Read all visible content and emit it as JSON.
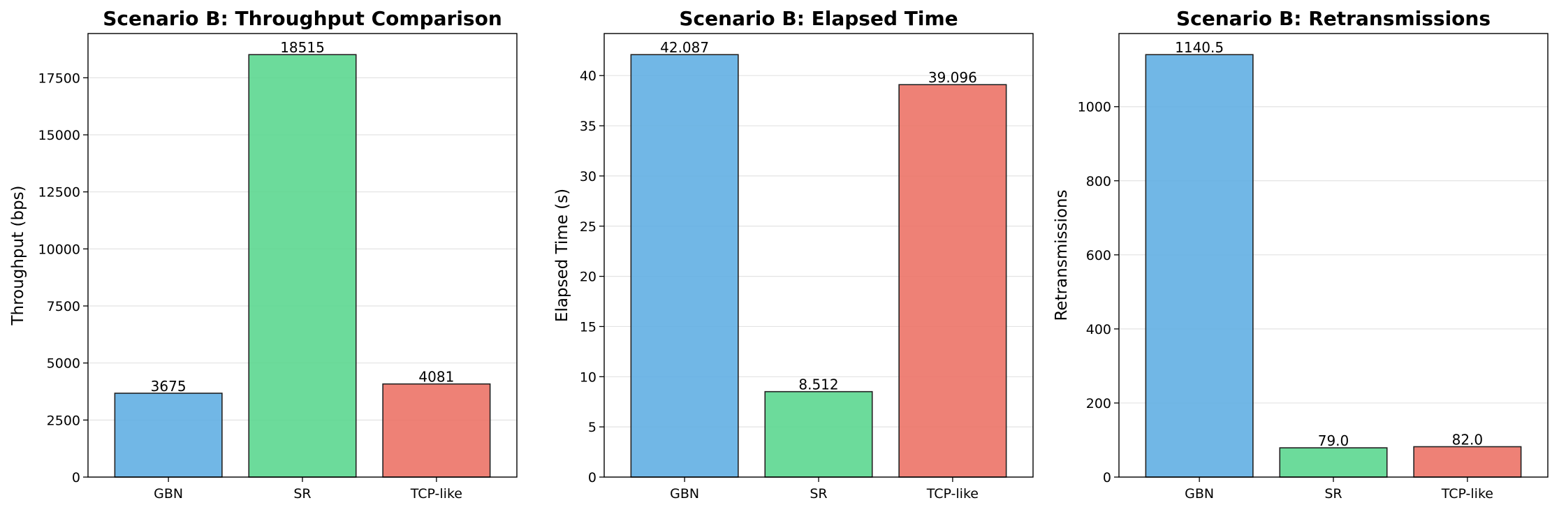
{
  "chart_data": [
    {
      "type": "bar",
      "title": "Scenario B: Throughput Comparison",
      "xlabel": "",
      "ylabel": "Throughput (bps)",
      "categories": [
        "GBN",
        "SR",
        "TCP-like"
      ],
      "values": [
        3675,
        18515,
        4081
      ],
      "value_labels": [
        "3675",
        "18515",
        "4081"
      ],
      "colors": [
        "#5DADE2",
        "#58D68D",
        "#EC7063"
      ],
      "ylim": [
        0,
        19440
      ],
      "yticks": [
        0,
        2500,
        5000,
        7500,
        10000,
        12500,
        15000,
        17500
      ],
      "grid": "y",
      "legend": "none"
    },
    {
      "type": "bar",
      "title": "Scenario B: Elapsed Time",
      "xlabel": "",
      "ylabel": "Elapsed Time (s)",
      "categories": [
        "GBN",
        "SR",
        "TCP-like"
      ],
      "values": [
        42.087,
        8.512,
        39.096
      ],
      "value_labels": [
        "42.087",
        "8.512",
        "39.096"
      ],
      "colors": [
        "#5DADE2",
        "#58D68D",
        "#EC7063"
      ],
      "ylim": [
        0,
        44.19
      ],
      "yticks": [
        0,
        5,
        10,
        15,
        20,
        25,
        30,
        35,
        40
      ],
      "grid": "y",
      "legend": "none"
    },
    {
      "type": "bar",
      "title": "Scenario B: Retransmissions",
      "xlabel": "",
      "ylabel": "Retransmissions",
      "categories": [
        "GBN",
        "SR",
        "TCP-like"
      ],
      "values": [
        1140.5,
        79.0,
        82.0
      ],
      "value_labels": [
        "1140.5",
        "79.0",
        "82.0"
      ],
      "colors": [
        "#5DADE2",
        "#58D68D",
        "#EC7063"
      ],
      "ylim": [
        0,
        1197.5
      ],
      "yticks": [
        0,
        200,
        400,
        600,
        800,
        1000
      ],
      "grid": "y",
      "legend": "none"
    }
  ]
}
